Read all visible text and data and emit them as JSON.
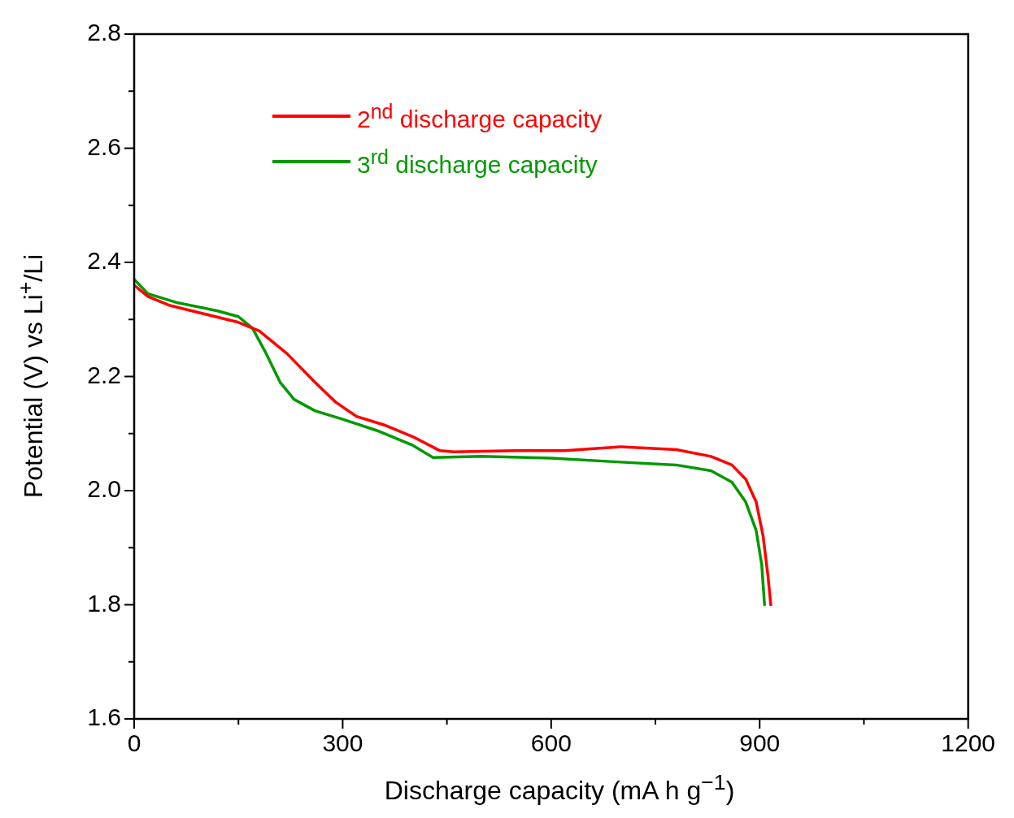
{
  "chart_data": {
    "type": "line",
    "xlabel": "Discharge capacity (mA h g$^{−1}$)",
    "ylabel": "Potential (V) vs Li$^{+}$/Li",
    "xlim": [
      0,
      1200
    ],
    "xticks": [
      0,
      {
        "value": 150,
        "label": null
      },
      300,
      {
        "value": 450,
        "label": null
      },
      600,
      {
        "value": 750,
        "label": null
      },
      900,
      {
        "value": 1050,
        "label": null
      },
      1200
    ],
    "ylim": [
      1.6,
      2.8
    ],
    "yticks": [
      {
        "value": 1.6,
        "label": "1.6"
      },
      {
        "value": 1.7,
        "label": null
      },
      {
        "value": 1.8,
        "label": "1.8"
      },
      {
        "value": 1.9,
        "label": null
      },
      {
        "value": 2.0,
        "label": "2.0"
      },
      {
        "value": 2.1,
        "label": null
      },
      {
        "value": 2.2,
        "label": "2.2"
      },
      {
        "value": 2.3,
        "label": null
      },
      {
        "value": 2.4,
        "label": "2.4"
      },
      {
        "value": 2.5,
        "label": null
      },
      {
        "value": 2.6,
        "label": "2.6"
      },
      {
        "value": 2.7,
        "label": null
      },
      {
        "value": 2.8,
        "label": "2.8"
      }
    ],
    "grid": false,
    "legend": "top left",
    "marker": "none",
    "line_style": "solid",
    "series": [
      {
        "name": "2$^{nd}$ discharge capacity",
        "color": "#ff0000",
        "x": [
          0,
          20,
          50,
          100,
          150,
          180,
          220,
          260,
          290,
          320,
          360,
          400,
          440,
          460,
          550,
          620,
          700,
          780,
          830,
          860,
          880,
          895,
          905,
          912,
          916
        ],
        "values": [
          2.36,
          2.34,
          2.325,
          2.31,
          2.295,
          2.28,
          2.24,
          2.19,
          2.155,
          2.13,
          2.115,
          2.095,
          2.07,
          2.068,
          2.07,
          2.07,
          2.077,
          2.072,
          2.06,
          2.045,
          2.02,
          1.98,
          1.92,
          1.85,
          1.8
        ]
      },
      {
        "name": "3$^{rd}$ discharge capacity",
        "color": "#009900",
        "x": [
          0,
          20,
          60,
          120,
          150,
          170,
          190,
          210,
          230,
          260,
          300,
          350,
          400,
          430,
          500,
          600,
          700,
          780,
          830,
          860,
          880,
          895,
          903,
          907
        ],
        "values": [
          2.37,
          2.345,
          2.33,
          2.315,
          2.305,
          2.285,
          2.24,
          2.19,
          2.16,
          2.14,
          2.125,
          2.105,
          2.08,
          2.058,
          2.06,
          2.057,
          2.05,
          2.045,
          2.035,
          2.015,
          1.98,
          1.93,
          1.87,
          1.8
        ]
      }
    ]
  }
}
